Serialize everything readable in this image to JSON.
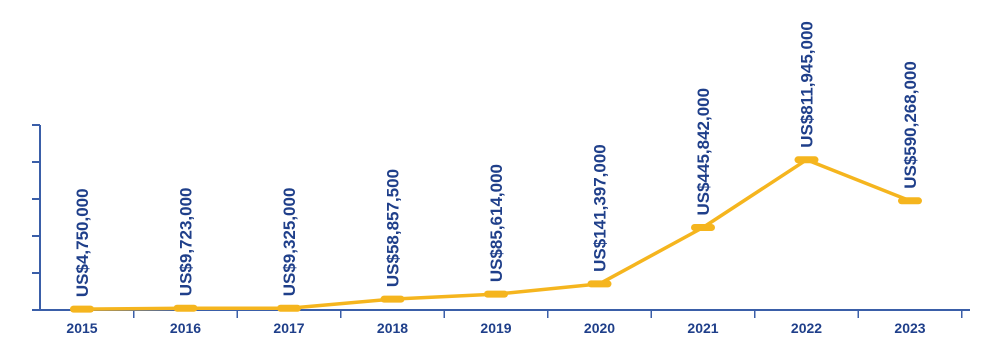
{
  "chart_data": {
    "type": "line",
    "title": "",
    "xlabel": "",
    "ylabel": "",
    "categories": [
      "2015",
      "2016",
      "2017",
      "2018",
      "2019",
      "2020",
      "2021",
      "2022",
      "2023"
    ],
    "values": [
      4750000,
      9723000,
      9325000,
      58857500,
      85614000,
      141397000,
      445842000,
      811945000,
      590268000
    ],
    "data_labels": [
      "US$4,750,000",
      "US$9,723,000",
      "US$9,325,000",
      "US$58,857,500",
      "US$85,614,000",
      "US$141,397,000",
      "US$445,842,000",
      "US$811,945,000",
      "US$590,268,000"
    ],
    "ylim": [
      0,
      1000000000
    ],
    "y_ticks": [
      0,
      200000000,
      400000000,
      600000000,
      800000000,
      1000000000
    ],
    "y_tick_labels_shown": false,
    "grid": false,
    "legend": "none",
    "colors": {
      "line": "#f5b51e",
      "axis": "#3a5ea8",
      "text": "#1f3f8a"
    }
  }
}
